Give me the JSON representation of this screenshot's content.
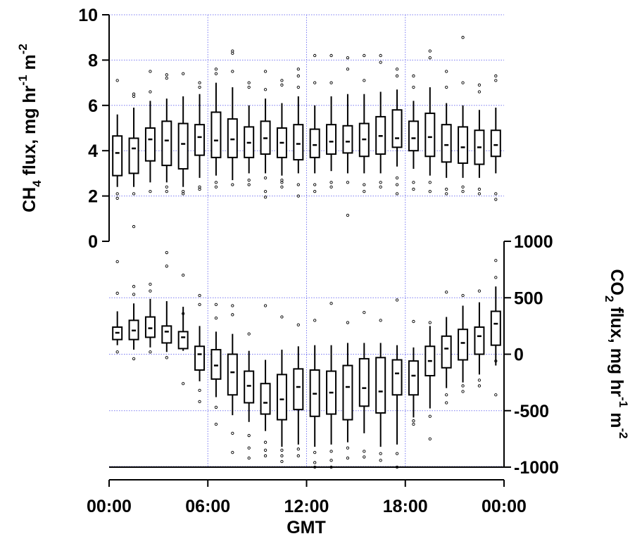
{
  "chart_data": [
    {
      "type": "box",
      "panel": "top",
      "ylabel": {
        "prefix": "CH",
        "sub": "4",
        "mid": " flux, mg hr",
        "sup1": "-1",
        "mid2": " m",
        "sup2": "-2"
      },
      "ylim": [
        0,
        10
      ],
      "yticks": [
        0,
        2,
        4,
        6,
        8,
        10
      ],
      "ytick_labels": [
        "0",
        "2",
        "4",
        "6",
        "8",
        "10"
      ],
      "axis_side": "left",
      "grid": true,
      "x": [
        0.5,
        1.5,
        2.5,
        3.5,
        4.5,
        5.5,
        6.5,
        7.5,
        8.5,
        9.5,
        10.5,
        11.5,
        12.5,
        13.5,
        14.5,
        15.5,
        16.5,
        17.5,
        18.5,
        19.5,
        20.5,
        21.5,
        22.5,
        23.5
      ],
      "boxes": [
        {
          "whislo": 2.4,
          "q1": 2.9,
          "med": 3.9,
          "q3": 4.65,
          "whishi": 5.6,
          "fliers": [
            7.1,
            2.1,
            1.9
          ]
        },
        {
          "whislo": 2.4,
          "q1": 3.0,
          "med": 4.1,
          "q3": 4.55,
          "whishi": 5.9,
          "fliers": [
            6.4,
            6.5,
            2.1,
            0.65
          ]
        },
        {
          "whislo": 2.6,
          "q1": 3.55,
          "med": 4.5,
          "q3": 5.0,
          "whishi": 6.2,
          "fliers": [
            7.5,
            6.6,
            2.2
          ]
        },
        {
          "whislo": 2.6,
          "q1": 3.35,
          "med": 4.45,
          "q3": 5.3,
          "whishi": 6.3,
          "fliers": [
            7.35,
            7.2,
            2.4,
            2.2
          ]
        },
        {
          "whislo": 2.4,
          "q1": 3.2,
          "med": 4.3,
          "q3": 5.2,
          "whishi": 6.4,
          "fliers": [
            7.4,
            2.2,
            2.1
          ]
        },
        {
          "whislo": 2.8,
          "q1": 3.8,
          "med": 4.6,
          "q3": 5.15,
          "whishi": 6.5,
          "fliers": [
            7.0,
            6.8,
            2.4,
            2.3
          ]
        },
        {
          "whislo": 2.9,
          "q1": 3.7,
          "med": 4.45,
          "q3": 5.7,
          "whishi": 7.0,
          "fliers": [
            7.6,
            7.4,
            2.6,
            2.4
          ]
        },
        {
          "whislo": 2.7,
          "q1": 3.7,
          "med": 4.5,
          "q3": 5.4,
          "whishi": 6.8,
          "fliers": [
            8.4,
            8.3,
            7.5,
            2.5
          ]
        },
        {
          "whislo": 3.0,
          "q1": 3.7,
          "med": 4.35,
          "q3": 5.05,
          "whishi": 6.0,
          "fliers": [
            7.0,
            6.8,
            2.7,
            2.5
          ]
        },
        {
          "whislo": 3.0,
          "q1": 3.85,
          "med": 4.55,
          "q3": 5.3,
          "whishi": 6.3,
          "fliers": [
            7.5,
            6.7,
            2.8,
            2.2,
            1.95
          ]
        },
        {
          "whislo": 2.9,
          "q1": 3.7,
          "med": 4.35,
          "q3": 5.0,
          "whishi": 6.1,
          "fliers": [
            7.1,
            6.9,
            2.7,
            2.6,
            2.4
          ]
        },
        {
          "whislo": 3.0,
          "q1": 3.6,
          "med": 4.3,
          "q3": 5.15,
          "whishi": 6.4,
          "fliers": [
            7.6,
            7.3,
            6.8,
            2.5,
            2.0
          ]
        },
        {
          "whislo": 3.0,
          "q1": 3.7,
          "med": 4.25,
          "q3": 4.95,
          "whishi": 6.0,
          "fliers": [
            8.2,
            7.0,
            2.5,
            2.2
          ]
        },
        {
          "whislo": 3.1,
          "q1": 3.85,
          "med": 4.4,
          "q3": 5.15,
          "whishi": 6.4,
          "fliers": [
            8.2,
            7.0,
            2.6,
            2.4
          ]
        },
        {
          "whislo": 3.0,
          "q1": 3.9,
          "med": 4.4,
          "q3": 5.1,
          "whishi": 6.5,
          "fliers": [
            8.1,
            7.6,
            2.6,
            1.15
          ]
        },
        {
          "whislo": 3.0,
          "q1": 3.75,
          "med": 4.5,
          "q3": 5.2,
          "whishi": 6.5,
          "fliers": [
            8.2,
            7.1,
            2.5,
            2.2
          ]
        },
        {
          "whislo": 3.0,
          "q1": 3.85,
          "med": 4.65,
          "q3": 5.5,
          "whishi": 6.6,
          "fliers": [
            8.2,
            7.9,
            2.6,
            2.4
          ]
        },
        {
          "whislo": 3.3,
          "q1": 4.15,
          "med": 4.55,
          "q3": 5.8,
          "whishi": 6.7,
          "fliers": [
            7.6,
            7.3,
            2.8,
            2.5,
            2.1
          ]
        },
        {
          "whislo": 3.2,
          "q1": 4.0,
          "med": 4.55,
          "q3": 5.3,
          "whishi": 6.2,
          "fliers": [
            7.3,
            6.8,
            2.6,
            2.3
          ]
        },
        {
          "whislo": 2.9,
          "q1": 3.75,
          "med": 4.6,
          "q3": 5.65,
          "whishi": 6.8,
          "fliers": [
            8.4,
            8.1,
            2.6,
            2.2
          ]
        },
        {
          "whislo": 2.8,
          "q1": 3.5,
          "med": 4.25,
          "q3": 5.15,
          "whishi": 6.1,
          "fliers": [
            7.5,
            6.8,
            2.3,
            2.1
          ]
        },
        {
          "whislo": 2.8,
          "q1": 3.45,
          "med": 4.15,
          "q3": 5.05,
          "whishi": 6.0,
          "fliers": [
            9.0,
            7.0,
            2.4,
            2.2
          ]
        },
        {
          "whislo": 2.8,
          "q1": 3.4,
          "med": 4.15,
          "q3": 4.9,
          "whishi": 5.8,
          "fliers": [
            6.9,
            6.6,
            2.3,
            2.1
          ]
        },
        {
          "whislo": 3.0,
          "q1": 3.75,
          "med": 4.25,
          "q3": 4.9,
          "whishi": 5.9,
          "fliers": [
            7.3,
            7.1,
            2.1,
            1.85
          ]
        }
      ]
    },
    {
      "type": "box",
      "panel": "bottom",
      "ylabel": {
        "prefix": "CO",
        "sub": "2",
        "mid": " flux, mg hr",
        "sup1": "-1",
        "mid2": " m",
        "sup2": "-2"
      },
      "ylim": [
        -1000,
        1000
      ],
      "yticks": [
        -1000,
        -500,
        0,
        500,
        1000
      ],
      "ytick_labels": [
        "-1000",
        "-500",
        "0",
        "500",
        "1000"
      ],
      "axis_side": "right",
      "grid": true,
      "xlabel": "GMT",
      "xlim": [
        0,
        24
      ],
      "xticks": [
        0,
        6,
        12,
        18,
        24
      ],
      "xtick_labels": [
        "00:00",
        "06:00",
        "12:00",
        "18:00",
        "00:00"
      ],
      "x": [
        0.5,
        1.5,
        2.5,
        3.5,
        4.5,
        5.5,
        6.5,
        7.5,
        8.5,
        9.5,
        10.5,
        11.5,
        12.5,
        13.5,
        14.5,
        15.5,
        16.5,
        17.5,
        18.5,
        19.5,
        20.5,
        21.5,
        22.5,
        23.5
      ],
      "boxes": [
        {
          "whislo": 80,
          "q1": 130,
          "med": 190,
          "q3": 240,
          "whishi": 380,
          "fliers": [
            820,
            540,
            20
          ]
        },
        {
          "whislo": 40,
          "q1": 130,
          "med": 210,
          "q3": 300,
          "whishi": 450,
          "fliers": [
            600,
            530,
            -40
          ]
        },
        {
          "whislo": 60,
          "q1": 150,
          "med": 230,
          "q3": 330,
          "whishi": 490,
          "fliers": [
            620,
            560,
            20
          ]
        },
        {
          "whislo": 20,
          "q1": 100,
          "med": 200,
          "q3": 250,
          "whishi": 470,
          "fliers": [
            900,
            780,
            -30
          ]
        },
        {
          "whislo": 30,
          "q1": 50,
          "med": 150,
          "q3": 200,
          "whishi": 420,
          "fliers": [
            700,
            360,
            -260
          ]
        },
        {
          "whislo": -240,
          "q1": -140,
          "med": 0,
          "q3": 70,
          "whishi": 250,
          "fliers": [
            520,
            440,
            -320,
            -420
          ]
        },
        {
          "whislo": -380,
          "q1": -220,
          "med": -100,
          "q3": 40,
          "whishi": 200,
          "fliers": [
            440,
            320,
            -470,
            -620
          ]
        },
        {
          "whislo": -540,
          "q1": -360,
          "med": -160,
          "q3": 0,
          "whishi": 180,
          "fliers": [
            430,
            350,
            -700,
            -870
          ]
        },
        {
          "whislo": -600,
          "q1": -430,
          "med": -280,
          "q3": -150,
          "whishi": 30,
          "fliers": [
            180,
            -720,
            -830,
            -920
          ]
        },
        {
          "whislo": -680,
          "q1": -530,
          "med": -430,
          "q3": -260,
          "whishi": -50,
          "fliers": [
            430,
            -780,
            -850,
            -900
          ]
        },
        {
          "whislo": -820,
          "q1": -580,
          "med": -400,
          "q3": -180,
          "whishi": 40,
          "fliers": [
            330,
            -850,
            -900,
            -950
          ]
        },
        {
          "whislo": -800,
          "q1": -490,
          "med": -290,
          "q3": -130,
          "whishi": 70,
          "fliers": [
            260,
            -840,
            -900
          ]
        },
        {
          "whislo": -820,
          "q1": -550,
          "med": -350,
          "q3": -140,
          "whishi": 80,
          "fliers": [
            300,
            -870,
            -960,
            -1000
          ]
        },
        {
          "whislo": -800,
          "q1": -530,
          "med": -340,
          "q3": -150,
          "whishi": 80,
          "fliers": [
            450,
            -860,
            -940,
            -1000
          ]
        },
        {
          "whislo": -780,
          "q1": -580,
          "med": -290,
          "q3": -100,
          "whishi": 100,
          "fliers": [
            280,
            -830,
            -920
          ]
        },
        {
          "whislo": -700,
          "q1": -460,
          "med": -300,
          "q3": -40,
          "whishi": 100,
          "fliers": [
            370,
            -860,
            -910
          ]
        },
        {
          "whislo": -820,
          "q1": -520,
          "med": -330,
          "q3": -30,
          "whishi": 100,
          "fliers": [
            300,
            -880,
            -940
          ]
        },
        {
          "whislo": -800,
          "q1": -360,
          "med": -170,
          "q3": -50,
          "whishi": 80,
          "fliers": [
            480,
            -880,
            -1000
          ]
        },
        {
          "whislo": -560,
          "q1": -360,
          "med": -190,
          "q3": -60,
          "whishi": 60,
          "fliers": [
            290,
            -590,
            -620
          ]
        },
        {
          "whislo": -480,
          "q1": -190,
          "med": -60,
          "q3": 70,
          "whishi": 250,
          "fliers": [
            280,
            -550,
            -750
          ]
        },
        {
          "whislo": -300,
          "q1": -120,
          "med": 50,
          "q3": 160,
          "whishi": 330,
          "fliers": [
            550,
            -360,
            -430
          ]
        },
        {
          "whislo": -250,
          "q1": -50,
          "med": 100,
          "q3": 220,
          "whishi": 430,
          "fliers": [
            520,
            -280,
            -330
          ]
        },
        {
          "whislo": -180,
          "q1": 0,
          "med": 160,
          "q3": 240,
          "whishi": 460,
          "fliers": [
            560,
            -230,
            -280
          ]
        },
        {
          "whislo": -100,
          "q1": 80,
          "med": 270,
          "q3": 380,
          "whishi": 600,
          "fliers": [
            830,
            680,
            -60,
            -360
          ]
        }
      ]
    }
  ]
}
